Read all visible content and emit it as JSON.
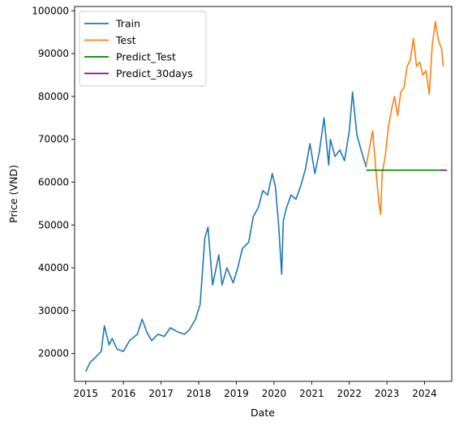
{
  "chart_data": {
    "type": "line",
    "title": "",
    "xlabel": "Date",
    "ylabel": "Price (VND)",
    "x_ticks": [
      "2015",
      "2016",
      "2017",
      "2018",
      "2019",
      "2020",
      "2021",
      "2022",
      "2023",
      "2024"
    ],
    "y_ticks": [
      20000,
      30000,
      40000,
      50000,
      60000,
      70000,
      80000,
      90000,
      100000
    ],
    "y_tick_labels": [
      "20000",
      "30000",
      "40000",
      "50000",
      "60000",
      "70000",
      "80000",
      "90000",
      "100000"
    ],
    "xlim": [
      "2014-09-15",
      "2024-09-20"
    ],
    "ylim": [
      13500,
      101000
    ],
    "grid": false,
    "legend_position": "top-left",
    "series": [
      {
        "name": "Train",
        "color": "#1f77b4",
        "x": [
          "2015-01-01",
          "2015-02-15",
          "2015-04-01",
          "2015-06-01",
          "2015-07-01",
          "2015-08-15",
          "2015-09-15",
          "2015-11-01",
          "2016-01-01",
          "2016-03-01",
          "2016-05-15",
          "2016-07-01",
          "2016-08-15",
          "2016-10-01",
          "2016-12-01",
          "2017-02-01",
          "2017-04-01",
          "2017-06-15",
          "2017-08-15",
          "2017-10-01",
          "2017-12-01",
          "2018-01-15",
          "2018-03-01",
          "2018-04-01",
          "2018-05-15",
          "2018-06-15",
          "2018-07-15",
          "2018-08-15",
          "2018-10-01",
          "2018-12-01",
          "2019-01-15",
          "2019-03-01",
          "2019-05-01",
          "2019-06-15",
          "2019-08-01",
          "2019-09-15",
          "2019-11-01",
          "2019-12-15",
          "2020-01-15",
          "2020-02-15",
          "2020-03-15",
          "2020-04-01",
          "2020-05-01",
          "2020-06-15",
          "2020-08-01",
          "2020-09-15",
          "2020-11-01",
          "2020-12-15",
          "2021-02-01",
          "2021-03-15",
          "2021-05-01",
          "2021-06-15",
          "2021-07-01",
          "2021-08-15",
          "2021-10-01",
          "2021-11-15",
          "2022-01-01",
          "2022-02-01",
          "2022-03-15",
          "2022-05-01",
          "2022-06-15"
        ],
        "values": [
          15800,
          18000,
          19000,
          20500,
          26500,
          22000,
          23500,
          21000,
          20500,
          23000,
          24500,
          28000,
          25000,
          23000,
          24500,
          24000,
          26000,
          25000,
          24500,
          25500,
          28000,
          31500,
          47000,
          49500,
          36000,
          39500,
          43000,
          36000,
          40000,
          36500,
          40000,
          44500,
          46000,
          52000,
          54000,
          58000,
          57000,
          62000,
          59000,
          50000,
          38500,
          51000,
          54000,
          57000,
          56000,
          59000,
          63000,
          69000,
          62000,
          67000,
          75000,
          64000,
          70000,
          66000,
          67500,
          65000,
          72000,
          81000,
          71000,
          67000,
          63500
        ]
      },
      {
        "name": "Test",
        "color": "#ff7f0e",
        "x": [
          "2022-06-15",
          "2022-07-15",
          "2022-08-15",
          "2022-09-15",
          "2022-10-15",
          "2022-11-01",
          "2022-11-15",
          "2022-12-15",
          "2023-01-15",
          "2023-02-15",
          "2023-03-15",
          "2023-04-15",
          "2023-05-15",
          "2023-06-15",
          "2023-07-15",
          "2023-08-15",
          "2023-09-15",
          "2023-10-15",
          "2023-11-15",
          "2023-12-15",
          "2024-01-15",
          "2024-02-15",
          "2024-03-15",
          "2024-04-15",
          "2024-05-15",
          "2024-06-15",
          "2024-07-01"
        ],
        "values": [
          64000,
          68000,
          72000,
          63000,
          55000,
          52500,
          62000,
          66000,
          73000,
          77000,
          80000,
          75500,
          81000,
          82000,
          87000,
          88500,
          93500,
          87000,
          88000,
          85000,
          86000,
          80500,
          92000,
          97500,
          93000,
          91000,
          87000
        ]
      },
      {
        "name": "Predict_Test",
        "color": "#008000",
        "x": [
          "2022-06-15",
          "2024-07-01"
        ],
        "values": [
          62800,
          62800
        ]
      },
      {
        "name": "Predict_30days",
        "color": "#800080",
        "x": [
          "2024-06-10",
          "2024-08-05"
        ],
        "values": [
          62800,
          62800
        ]
      }
    ]
  }
}
